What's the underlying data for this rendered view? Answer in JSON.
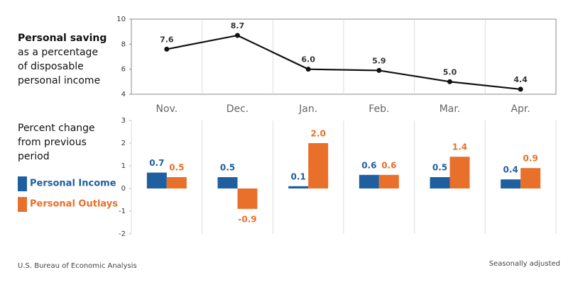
{
  "chart_data": [
    {
      "type": "line",
      "title": "Personal saving",
      "subtitle": "as a percentage of disposable personal income",
      "categories": [
        "Nov.",
        "Dec.",
        "Jan.",
        "Feb.",
        "Mar.",
        "Apr."
      ],
      "values": [
        7.6,
        8.7,
        6.0,
        5.9,
        5.0,
        4.4
      ],
      "value_labels": [
        "7.6",
        "8.7",
        "6.0",
        "5.9",
        "5.0",
        "4.4"
      ],
      "color": "#111111",
      "ylim": [
        4,
        10
      ],
      "yticks": [
        4,
        6,
        8,
        10
      ]
    },
    {
      "type": "bar",
      "title": "Percent change from previous period",
      "series": [
        {
          "name": "Personal Income",
          "color": "#1f5fa0",
          "values": [
            0.7,
            0.5,
            0.1,
            0.6,
            0.5,
            0.4
          ]
        },
        {
          "name": "Personal Outlays",
          "color": "#e8702a",
          "values": [
            0.5,
            -0.9,
            2.0,
            0.6,
            1.4,
            0.9
          ],
          "value_labels": [
            "0.5",
            "-0.9",
            "2.0",
            "0.6",
            "1.4",
            "0.9"
          ]
        }
      ],
      "ylim": [
        -2,
        3
      ],
      "yticks": [
        -2,
        -1,
        0,
        1,
        2,
        3
      ]
    }
  ],
  "footer": {
    "source": "U.S. Bureau of Economic Analysis",
    "note": "Seasonally adjusted"
  }
}
